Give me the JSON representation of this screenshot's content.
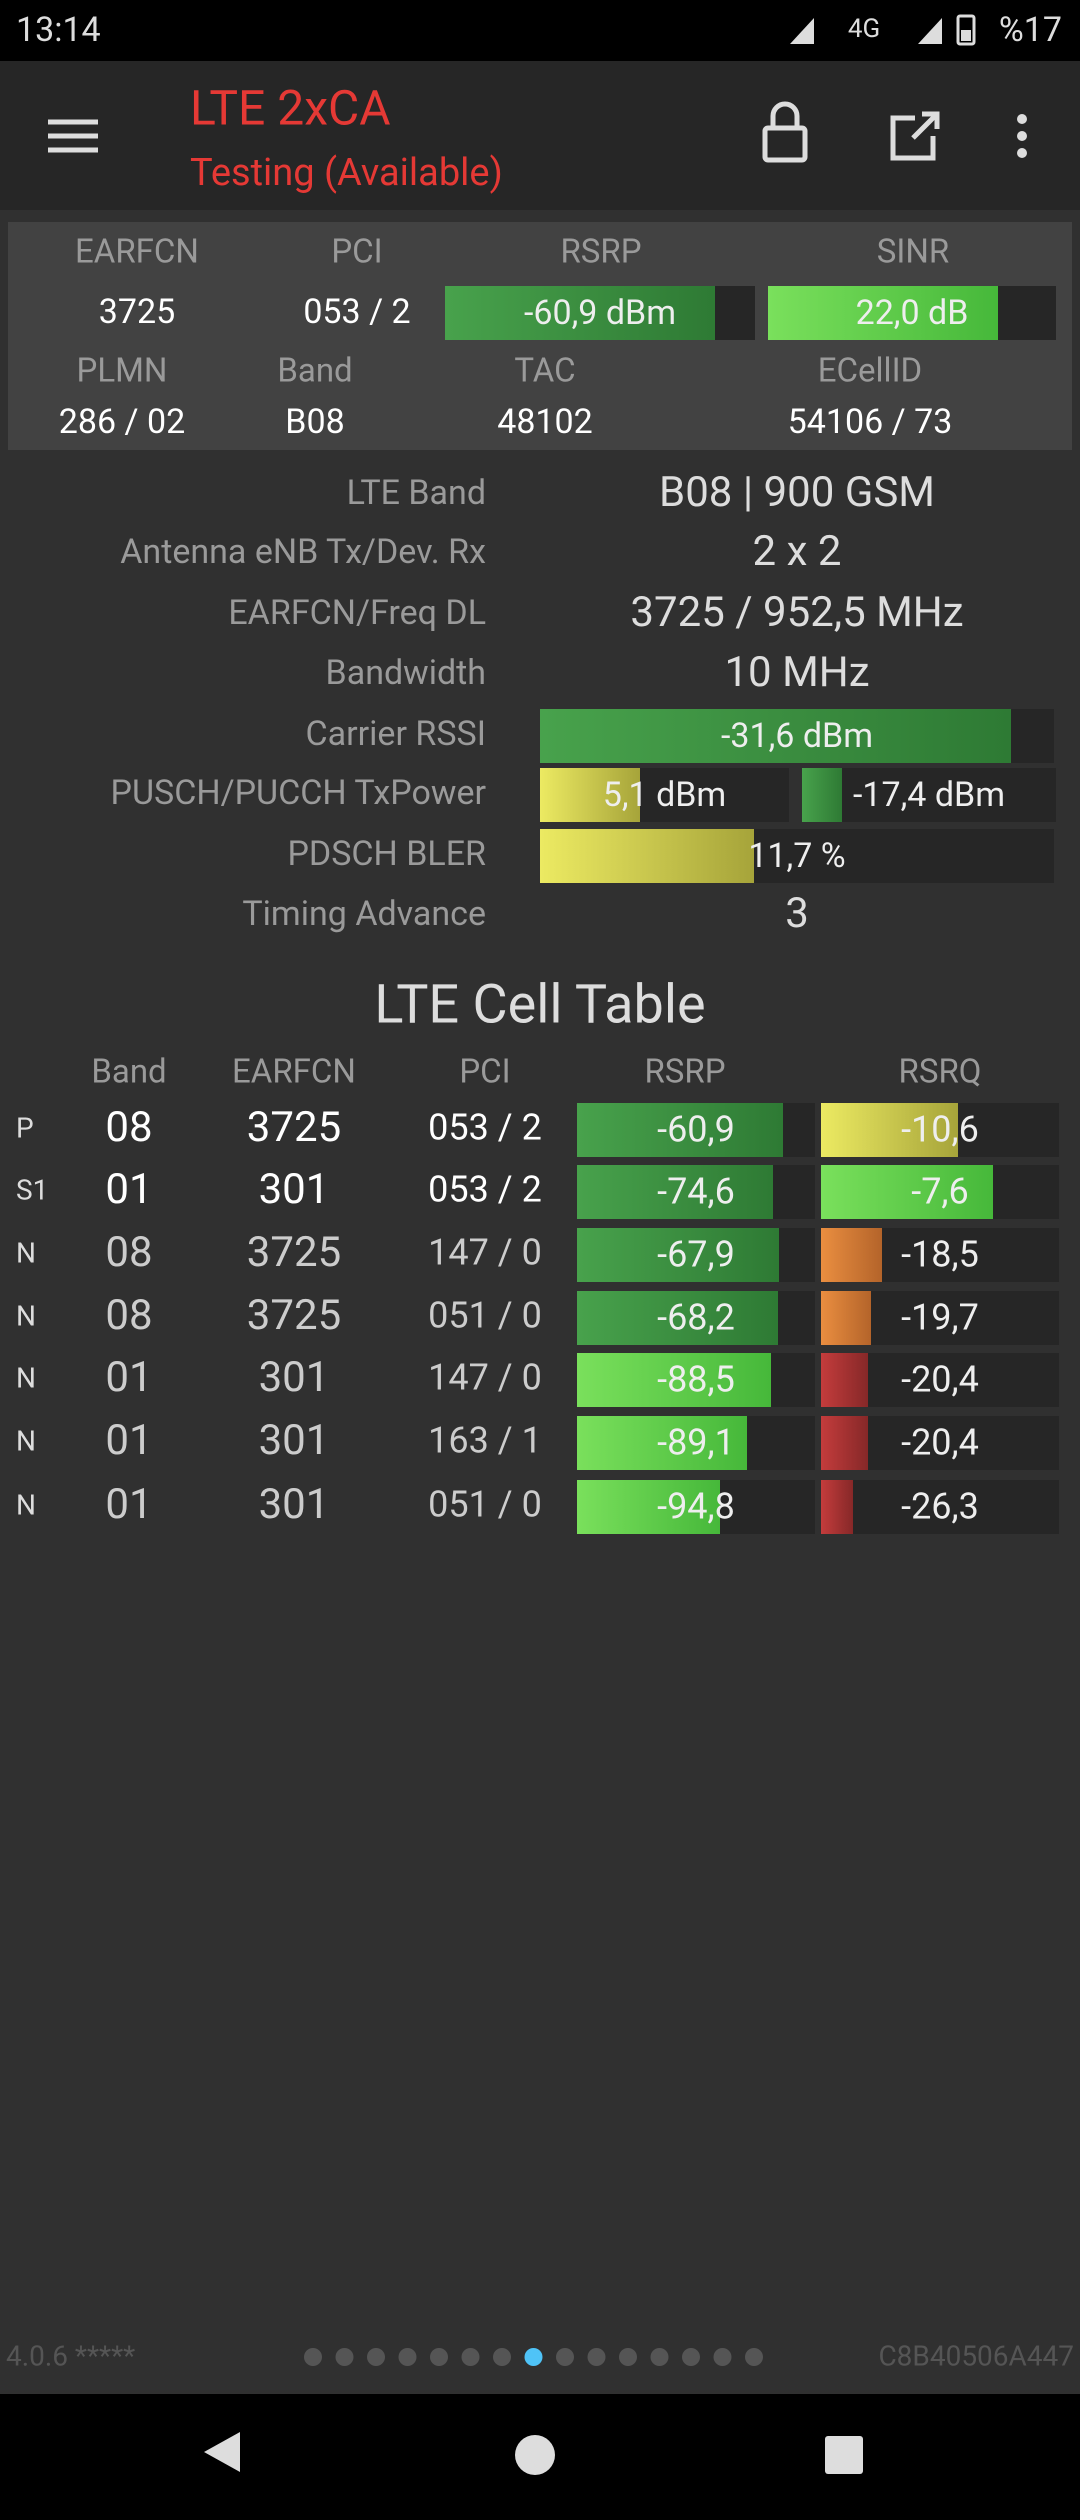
{
  "status_bar": {
    "time": "13:14",
    "network": "4G",
    "battery": "%17"
  },
  "app_bar": {
    "title": "LTE 2xCA",
    "subtitle": "Testing (Available)"
  },
  "summary": {
    "headers": [
      "EARFCN",
      "PCI",
      "RSRP",
      "SINR"
    ],
    "values": [
      "3725",
      "053 / 2",
      "-60,9 dBm",
      "22,0 dB"
    ],
    "headers2": [
      "PLMN",
      "Band",
      "TAC",
      "ECellID"
    ],
    "values2": [
      "286 / 02",
      "B08",
      "48102",
      "54106 / 73"
    ]
  },
  "details": [
    {
      "label": "LTE Band",
      "value": "B08 | 900 GSM"
    },
    {
      "label": "Antenna eNB Tx/Dev. Rx",
      "value": "2 x 2"
    },
    {
      "label": "EARFCN/Freq DL",
      "value": "3725 / 952,5 MHz"
    },
    {
      "label": "Bandwidth",
      "value": "10 MHz"
    },
    {
      "label": "Carrier RSSI",
      "values": [
        "-31,6 dBm"
      ]
    },
    {
      "label": "PUSCH/PUCCH TxPower",
      "values": [
        "5,1 dBm",
        "-17,4 dBm"
      ]
    },
    {
      "label": "PDSCH BLER",
      "values": [
        "11,7 %"
      ]
    },
    {
      "label": "Timing Advance",
      "value": "3"
    }
  ],
  "cell_table": {
    "title": "LTE Cell Table",
    "headers": [
      "Band",
      "EARFCN",
      "PCI",
      "RSRP",
      "RSRQ"
    ],
    "rows": [
      [
        "P",
        "08",
        "3725",
        "053 / 2",
        "-60,9",
        "-10,6"
      ],
      [
        "S1",
        "01",
        "301",
        "053 / 2",
        "-74,6",
        "-7,6"
      ],
      [
        "N",
        "08",
        "3725",
        "147 / 0",
        "-67,9",
        "-18,5"
      ],
      [
        "N",
        "08",
        "3725",
        "051 / 0",
        "-68,2",
        "-19,7"
      ],
      [
        "N",
        "01",
        "301",
        "147 / 0",
        "-88,5",
        "-20,4"
      ],
      [
        "N",
        "01",
        "301",
        "163 / 1",
        "-89,1",
        "-20,4"
      ],
      [
        "N",
        "01",
        "301",
        "051 / 0",
        "-94,8",
        "-26,3"
      ]
    ]
  },
  "footer": {
    "version": "4.0.6 *****",
    "id": "C8B40506A447"
  }
}
